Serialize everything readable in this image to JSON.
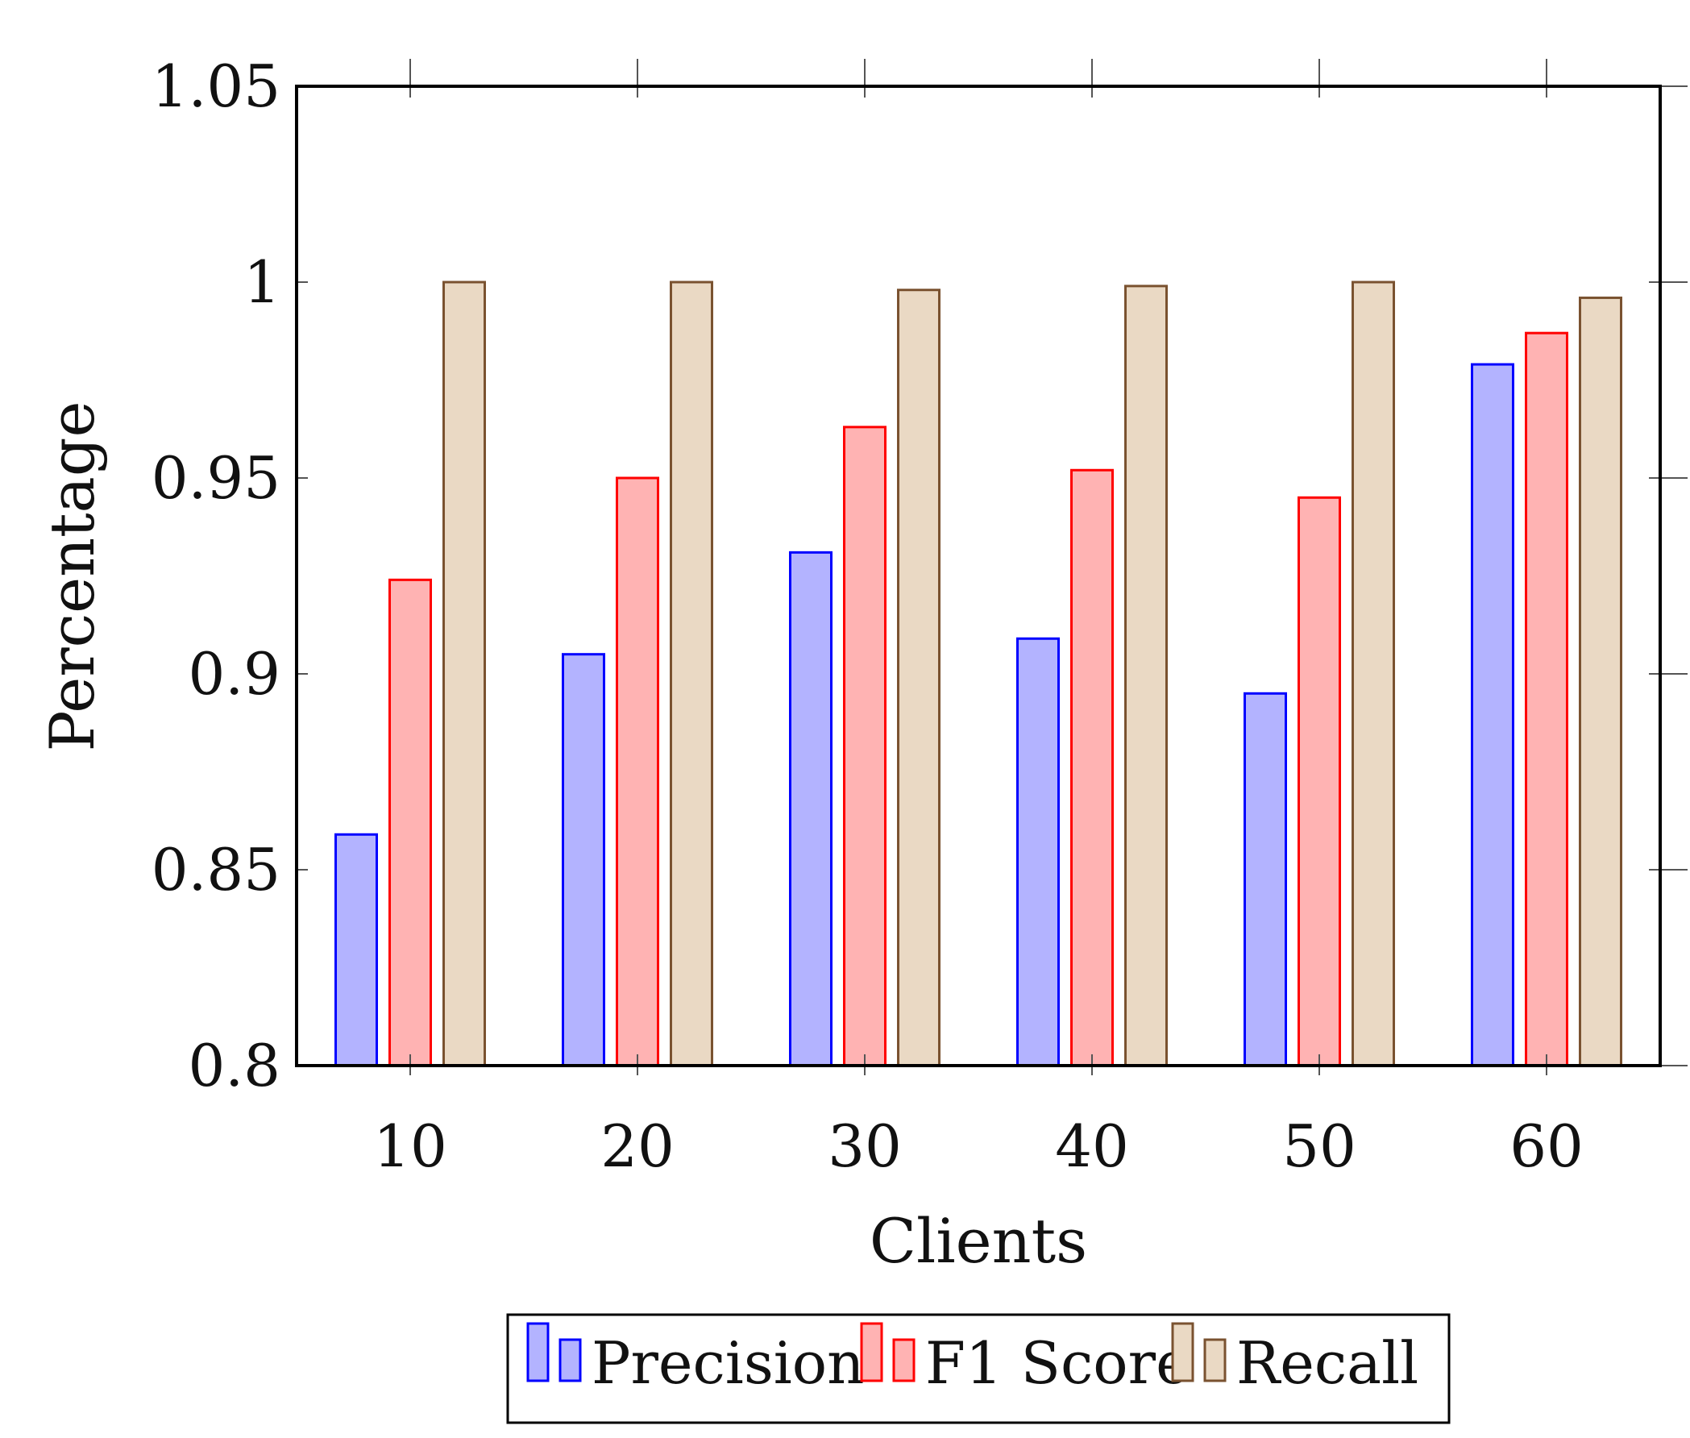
{
  "chart_data": {
    "type": "bar",
    "xlabel": "Clients",
    "ylabel": "Percentage",
    "categories": [
      "10",
      "20",
      "30",
      "40",
      "50",
      "60"
    ],
    "ylim": [
      0.8,
      1.05
    ],
    "yticks": [
      0.8,
      0.85,
      0.9,
      0.95,
      1.0,
      1.05
    ],
    "ytick_labels": [
      "0.8",
      "0.85",
      "0.9",
      "0.95",
      "1",
      "1.05"
    ],
    "grid": false,
    "legend_position": "bottom-center",
    "series": [
      {
        "name": "Precision",
        "values": [
          0.859,
          0.905,
          0.931,
          0.909,
          0.895,
          0.979
        ],
        "fill": "#b3b3ff",
        "stroke": "#0000ff"
      },
      {
        "name": "F1 Score",
        "values": [
          0.924,
          0.95,
          0.963,
          0.952,
          0.945,
          0.987
        ],
        "fill": "#ffb3b3",
        "stroke": "#ff0000"
      },
      {
        "name": "Recall",
        "values": [
          1.0,
          1.0,
          0.998,
          0.999,
          1.0,
          0.996
        ],
        "fill": "#ead9c4",
        "stroke": "#7a5230"
      }
    ]
  }
}
